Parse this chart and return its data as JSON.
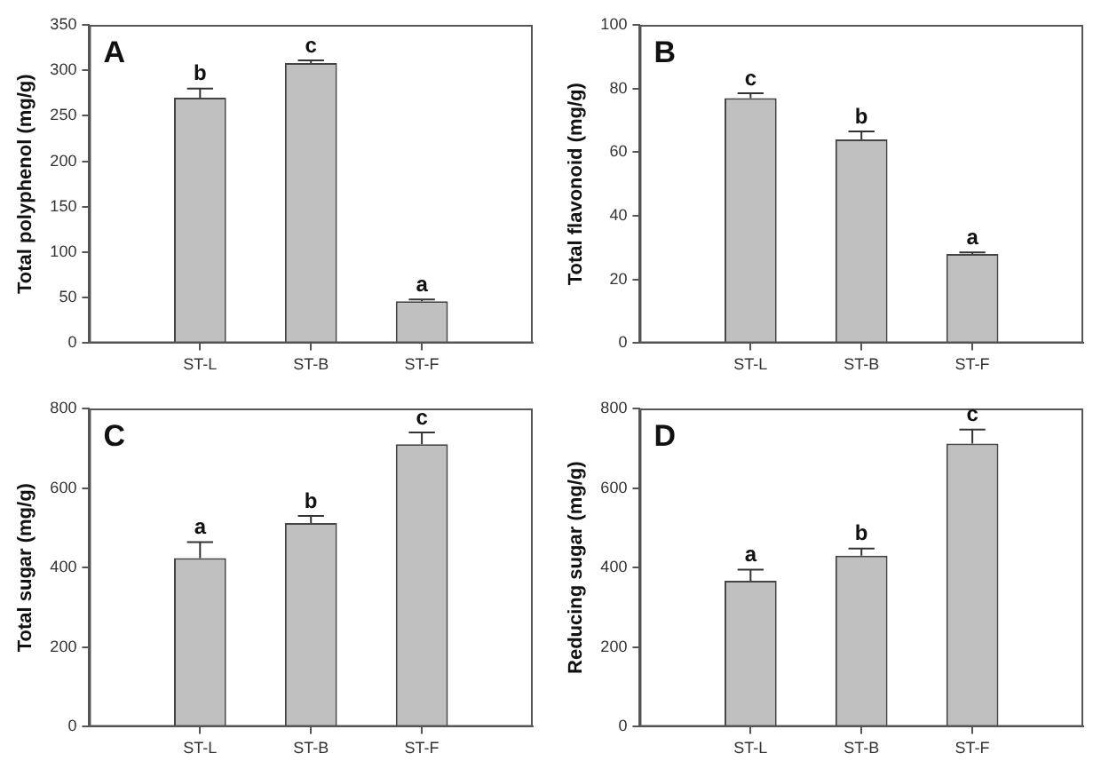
{
  "chart_data": [
    {
      "type": "bar",
      "title": "A",
      "ylabel": "Total polyphenol (mg/g)",
      "categories": [
        "ST-L",
        "ST-B",
        "ST-F"
      ],
      "values": [
        270,
        308,
        46
      ],
      "errors": [
        10,
        3,
        2
      ],
      "color": "#c0c0c0",
      "ylim": [
        0,
        350
      ],
      "yticks": [
        0,
        50,
        100,
        150,
        200,
        250,
        300,
        350
      ],
      "grid": false,
      "legend": false,
      "annotations": [
        {
          "text": "b",
          "x": "ST-L",
          "y": 280
        },
        {
          "text": "c",
          "x": "ST-B",
          "y": 311
        },
        {
          "text": "a",
          "x": "ST-F",
          "y": 48
        }
      ]
    },
    {
      "type": "bar",
      "title": "B",
      "ylabel": "Total flavonoid (mg/g)",
      "categories": [
        "ST-L",
        "ST-B",
        "ST-F"
      ],
      "values": [
        77,
        64,
        28
      ],
      "errors": [
        1.5,
        2.5,
        0.5
      ],
      "color": "#c0c0c0",
      "ylim": [
        0,
        100
      ],
      "yticks": [
        0,
        20,
        40,
        60,
        80,
        100
      ],
      "grid": false,
      "legend": false,
      "annotations": [
        {
          "text": "c",
          "x": "ST-L",
          "y": 78.5
        },
        {
          "text": "b",
          "x": "ST-B",
          "y": 66.5
        },
        {
          "text": "a",
          "x": "ST-F",
          "y": 28.5
        }
      ]
    },
    {
      "type": "bar",
      "title": "C",
      "ylabel": "Total sugar (mg/g)",
      "categories": [
        "ST-L",
        "ST-B",
        "ST-F"
      ],
      "values": [
        424,
        512,
        710
      ],
      "errors": [
        40,
        18,
        30
      ],
      "color": "#c0c0c0",
      "ylim": [
        0,
        800
      ],
      "yticks": [
        0,
        200,
        400,
        600,
        800
      ],
      "grid": false,
      "legend": false,
      "annotations": [
        {
          "text": "a",
          "x": "ST-L",
          "y": 464
        },
        {
          "text": "b",
          "x": "ST-B",
          "y": 530
        },
        {
          "text": "c",
          "x": "ST-F",
          "y": 740
        }
      ]
    },
    {
      "type": "bar",
      "title": "D",
      "ylabel": "Reducing sugar (mg/g)",
      "categories": [
        "ST-L",
        "ST-B",
        "ST-F"
      ],
      "values": [
        367,
        430,
        712
      ],
      "errors": [
        28,
        18,
        35
      ],
      "color": "#c0c0c0",
      "ylim": [
        0,
        800
      ],
      "yticks": [
        0,
        200,
        400,
        600,
        800
      ],
      "grid": false,
      "legend": false,
      "annotations": [
        {
          "text": "a",
          "x": "ST-L",
          "y": 395
        },
        {
          "text": "b",
          "x": "ST-B",
          "y": 448
        },
        {
          "text": "c",
          "x": "ST-F",
          "y": 747
        }
      ]
    }
  ]
}
